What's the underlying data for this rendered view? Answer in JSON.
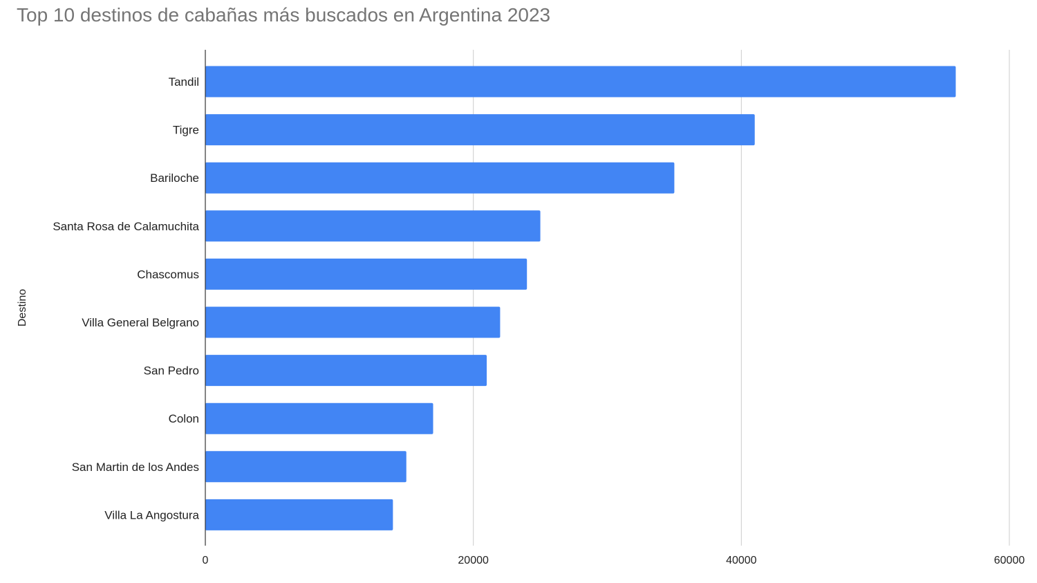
{
  "chart_data": {
    "type": "bar",
    "orientation": "horizontal",
    "title": "Top 10 destinos de cabañas más buscados en Argentina 2023",
    "xlabel": "",
    "ylabel": "Destino",
    "categories": [
      "Tandil",
      "Tigre",
      "Bariloche",
      "Santa Rosa de Calamuchita",
      "Chascomus",
      "Villa General Belgrano",
      "San Pedro",
      "Colon",
      "San Martin de los Andes",
      "Villa La Angostura"
    ],
    "values": [
      56000,
      41000,
      35000,
      25000,
      24000,
      22000,
      21000,
      17000,
      15000,
      14000
    ],
    "xlim": [
      0,
      60000
    ],
    "xticks": [
      0,
      20000,
      40000,
      60000
    ],
    "grid": true,
    "legend": "none",
    "bar_color": "#4285f4"
  }
}
